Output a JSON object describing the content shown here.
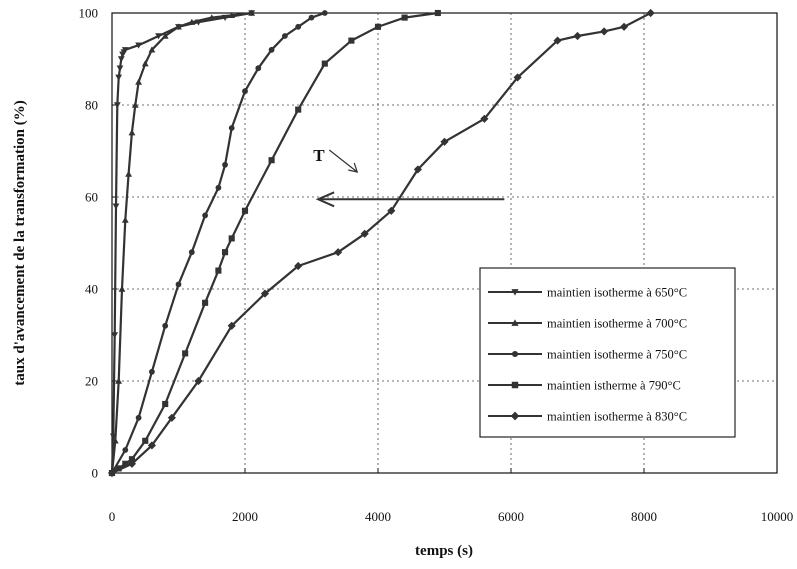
{
  "chart_data": {
    "type": "line",
    "title": "",
    "xlabel": "temps (s)",
    "ylabel": "taux d'avancement de la transformation (%)",
    "xlim": [
      0,
      10000
    ],
    "ylim": [
      0,
      100
    ],
    "xticks": [
      0,
      2000,
      4000,
      6000,
      8000,
      10000
    ],
    "yticks": [
      0,
      20,
      40,
      60,
      80,
      100
    ],
    "grid": true,
    "legend_position": "bottom-right",
    "annotation": {
      "text": "T",
      "x": 4500,
      "y": 65
    },
    "arrow": {
      "from": [
        5900,
        59.5
      ],
      "to": [
        3100,
        59.5
      ]
    },
    "series": [
      {
        "name": "maintien isotherme à 650°C",
        "marker": "triangle-down",
        "x": [
          0,
          20,
          40,
          60,
          80,
          100,
          120,
          140,
          160,
          180,
          200,
          400,
          700,
          1000,
          1300,
          1700,
          2100
        ],
        "y": [
          0,
          8,
          30,
          58,
          80,
          86,
          88,
          90,
          91,
          91.5,
          92,
          93,
          95,
          97,
          98,
          99,
          100
        ]
      },
      {
        "name": "maintien isotherme à 700°C",
        "marker": "triangle-up",
        "x": [
          0,
          50,
          100,
          150,
          200,
          250,
          300,
          350,
          400,
          500,
          600,
          800,
          1000,
          1200,
          1500,
          1800,
          2100
        ],
        "y": [
          0,
          7,
          20,
          40,
          55,
          65,
          74,
          80,
          85,
          89,
          92,
          95,
          97,
          98,
          99,
          99.5,
          100
        ]
      },
      {
        "name": "maintien isotherme à 750°C",
        "marker": "circle",
        "x": [
          0,
          200,
          400,
          600,
          800,
          1000,
          1200,
          1400,
          1600,
          1700,
          1800,
          2000,
          2200,
          2400,
          2600,
          2800,
          3000,
          3200
        ],
        "y": [
          0,
          5,
          12,
          22,
          32,
          41,
          48,
          56,
          62,
          67,
          75,
          83,
          88,
          92,
          95,
          97,
          99,
          100
        ]
      },
      {
        "name": "maintien isthermе à 790°C",
        "marker": "square",
        "x": [
          0,
          100,
          200,
          300,
          500,
          800,
          1100,
          1400,
          1600,
          1700,
          1800,
          2000,
          2400,
          2800,
          3200,
          3600,
          4000,
          4400,
          4900
        ],
        "y": [
          0,
          1,
          2,
          3,
          7,
          15,
          26,
          37,
          44,
          48,
          51,
          57,
          68,
          79,
          89,
          94,
          97,
          99,
          100
        ]
      },
      {
        "name": "maintien isotherme à 830°C",
        "marker": "diamond",
        "x": [
          0,
          300,
          600,
          900,
          1300,
          1800,
          2300,
          2800,
          3400,
          3800,
          4200,
          4600,
          5000,
          5600,
          6100,
          6700,
          7000,
          7400,
          7700,
          8100
        ],
        "y": [
          0,
          2,
          6,
          12,
          20,
          32,
          39,
          45,
          48,
          52,
          57,
          66,
          72,
          77,
          86,
          94,
          95,
          96,
          97,
          100
        ]
      }
    ]
  }
}
